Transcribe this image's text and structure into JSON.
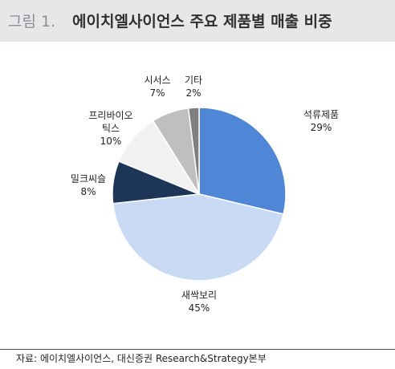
{
  "header": {
    "figure_label": "그림 1.",
    "title": "에이치엘사이언스 주요 제품별 매출 비중"
  },
  "chart_data": {
    "type": "pie",
    "title": "에이치엘사이언스 주요 제품별 매출 비중",
    "start_angle_deg": 0,
    "direction": "clockwise",
    "slices": [
      {
        "label": "석류제품",
        "label_lines": [
          "석류제품"
        ],
        "pct_text": "29%",
        "value": 29,
        "color": "#4f86d6"
      },
      {
        "label": "새싹보리",
        "label_lines": [
          "새싹보리"
        ],
        "pct_text": "45%",
        "value": 45,
        "color": "#c8daf4"
      },
      {
        "label": "밀크씨슬",
        "label_lines": [
          "밀크씨슬"
        ],
        "pct_text": "8%",
        "value": 8,
        "color": "#1d3557"
      },
      {
        "label": "프리바이오 틱스",
        "label_lines": [
          "프리바이오",
          "틱스"
        ],
        "pct_text": "10%",
        "value": 10,
        "color": "#f1f1f1"
      },
      {
        "label": "시서스",
        "label_lines": [
          "시서스"
        ],
        "pct_text": "7%",
        "value": 7,
        "color": "#bfbfbf"
      },
      {
        "label": "기타",
        "label_lines": [
          "기타"
        ],
        "pct_text": "2%",
        "value": 2,
        "color": "#7f7f7f"
      }
    ]
  },
  "source": {
    "text": "자료: 에이치엘사이언스, 대신증권 Research&Strategy본부"
  }
}
